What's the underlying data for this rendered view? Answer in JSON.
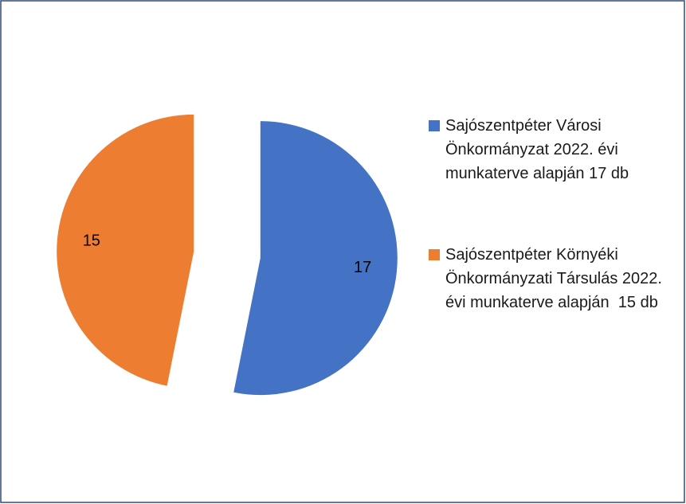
{
  "chart_data": {
    "type": "pie",
    "categories": [
      "Sajószentpéter Városi Önkormányzat 2022. évi munkaterve alapján 17 db",
      "Sajószentpéter Környéki Önkormányzati Társulás 2022. évi munkaterve alapján  15 db"
    ],
    "values": [
      17,
      15
    ],
    "colors": [
      "#4472c4",
      "#ed7d31"
    ],
    "legend": "right"
  }
}
